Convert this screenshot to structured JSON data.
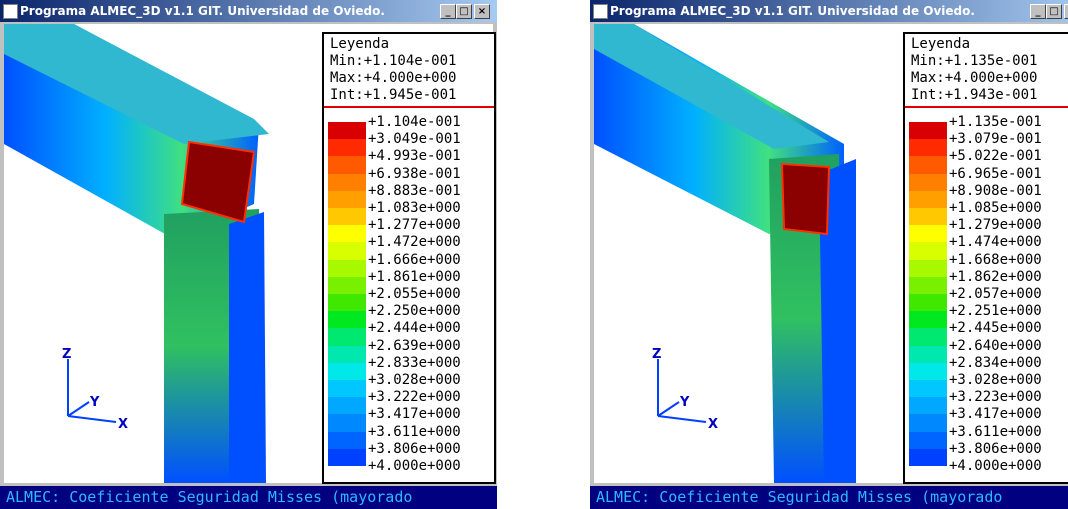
{
  "palette": [
    "#d80000",
    "#ff2a00",
    "#ff5a00",
    "#ff8000",
    "#ffa000",
    "#ffc800",
    "#ffff00",
    "#d8ff00",
    "#a8f800",
    "#78f000",
    "#40e800",
    "#00e820",
    "#00e870",
    "#00e8b0",
    "#00e8e8",
    "#00c8ff",
    "#00a8ff",
    "#0088ff",
    "#0064ff",
    "#0040ff"
  ],
  "windows": [
    {
      "title": "Programa ALMEC_3D v1.1 GIT. Universidad de Oviedo.",
      "legend": {
        "heading": "Leyenda",
        "min": "Min:+1.104e-001",
        "max": "Max:+4.000e+000",
        "int": "Int:+1.945e-001",
        "labels": [
          "+1.104e-001",
          "+3.049e-001",
          "+4.993e-001",
          "+6.938e-001",
          "+8.883e-001",
          "+1.083e+000",
          "+1.277e+000",
          "+1.472e+000",
          "+1.666e+000",
          "+1.861e+000",
          "+2.055e+000",
          "+2.250e+000",
          "+2.444e+000",
          "+2.639e+000",
          "+2.833e+000",
          "+3.028e+000",
          "+3.222e+000",
          "+3.417e+000",
          "+3.611e+000",
          "+3.806e+000",
          "+4.000e+000"
        ]
      },
      "axes": [
        "Z",
        "Y",
        "X"
      ],
      "status": "ALMEC: Coeficiente Seguridad Misses (mayorado"
    },
    {
      "title": "Programa ALMEC_3D v1.1 GIT. Universidad de Oviedo.",
      "legend": {
        "heading": "Leyenda",
        "min": "Min:+1.135e-001",
        "max": "Max:+4.000e+000",
        "int": "Int:+1.943e-001",
        "labels": [
          "+1.135e-001",
          "+3.079e-001",
          "+5.022e-001",
          "+6.965e-001",
          "+8.908e-001",
          "+1.085e+000",
          "+1.279e+000",
          "+1.474e+000",
          "+1.668e+000",
          "+1.862e+000",
          "+2.057e+000",
          "+2.251e+000",
          "+2.445e+000",
          "+2.640e+000",
          "+2.834e+000",
          "+3.028e+000",
          "+3.223e+000",
          "+3.417e+000",
          "+3.611e+000",
          "+3.806e+000",
          "+4.000e+000"
        ]
      },
      "axes": [
        "Z",
        "Y",
        "X"
      ],
      "status": "ALMEC: Coeficiente Seguridad Misses (mayorado"
    }
  ]
}
